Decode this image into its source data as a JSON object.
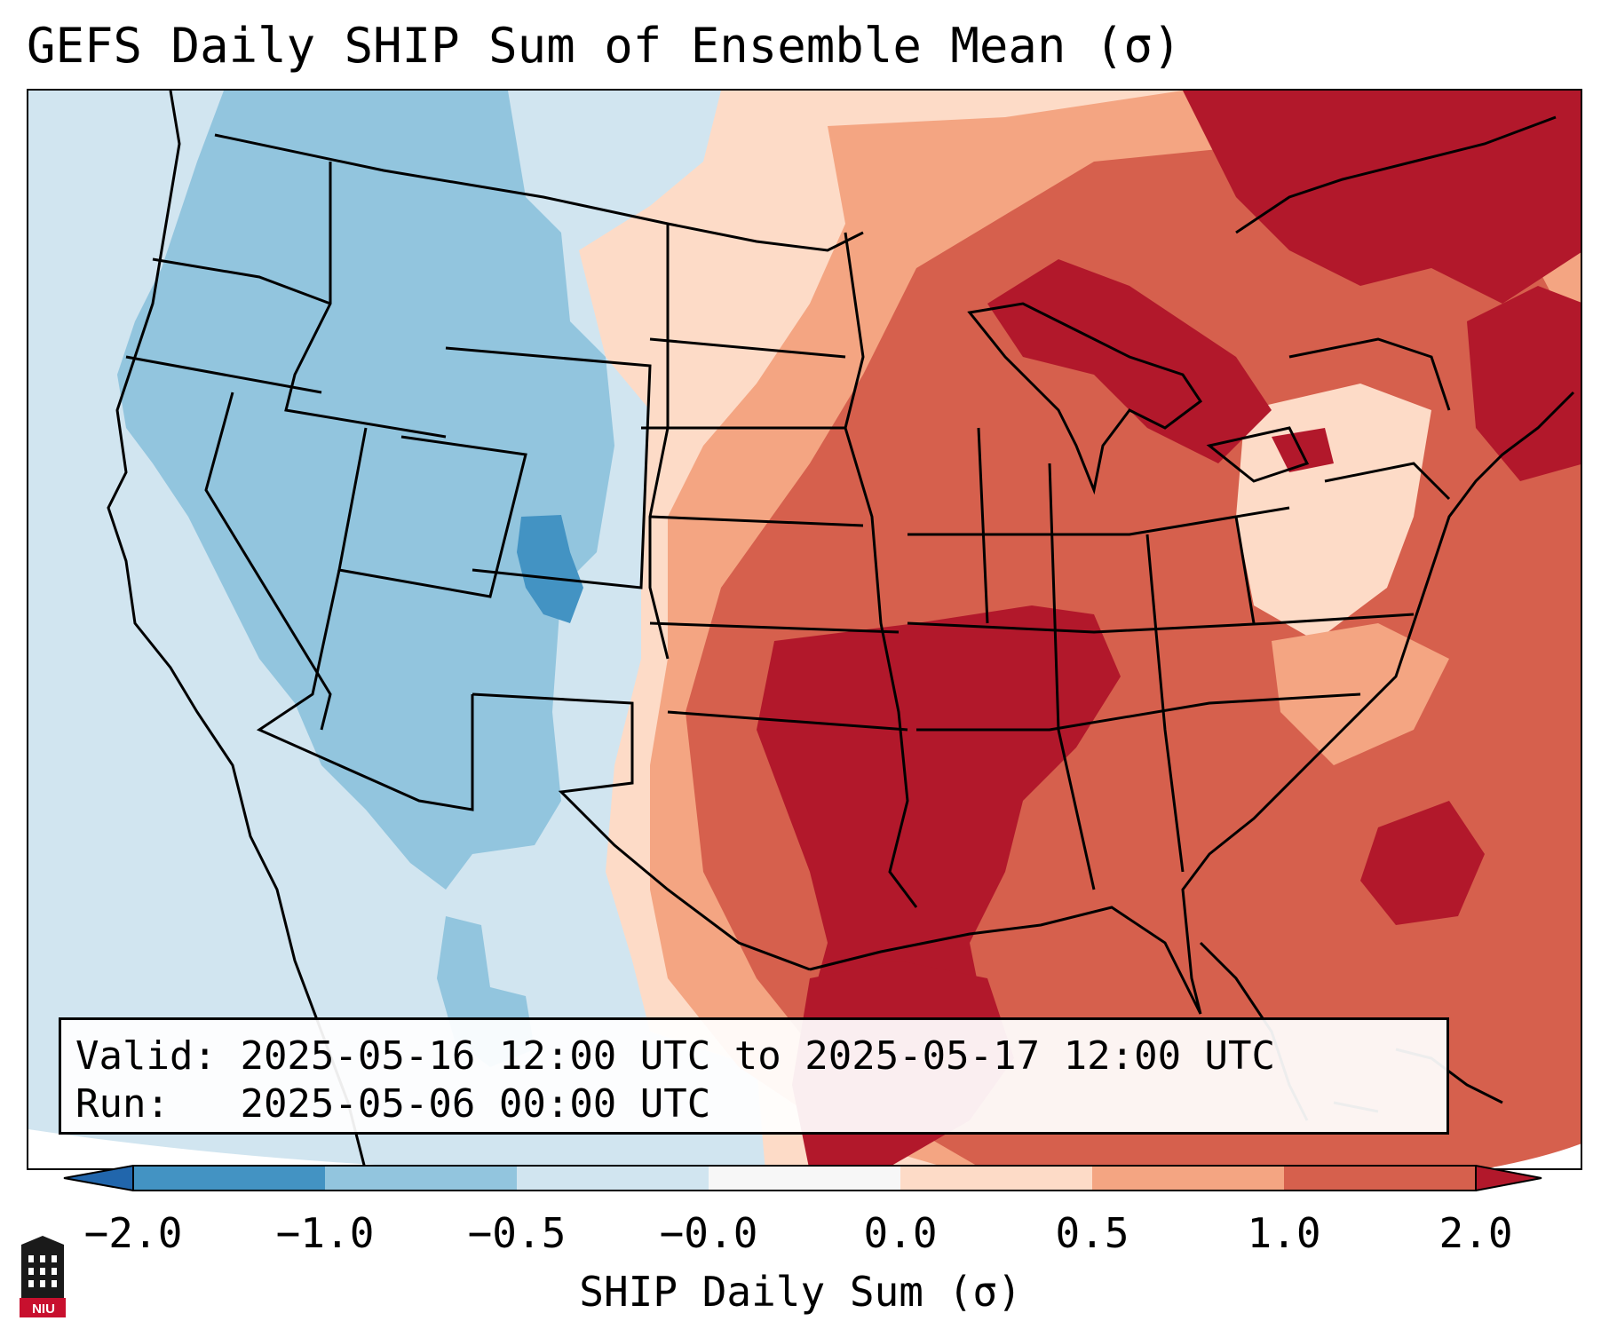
{
  "title": "GEFS Daily SHIP Sum of Ensemble Mean (σ)",
  "info": {
    "valid_label": "Valid:",
    "valid_value": "2025-05-16 12:00 UTC to 2025-05-17 12:00 UTC",
    "run_label": "Run:",
    "run_value": "2025-05-06 00:00 UTC"
  },
  "colorbar": {
    "label": "SHIP Daily Sum (σ)",
    "ticks": [
      "−2.0",
      "−1.0",
      "−0.5",
      "−0.0",
      "0.0",
      "0.5",
      "1.0",
      "2.0"
    ],
    "colors": [
      "#4393c3",
      "#92c5de",
      "#d1e5f0",
      "#f7f7f7",
      "#fddbc7",
      "#f4a582",
      "#d6604d",
      "#b2182b"
    ],
    "extend": "both"
  },
  "logo": {
    "text": "NIU",
    "icon": "niu-tower-logo"
  },
  "legend_bins": [
    {
      "range": "< −2.0",
      "color": "#2166ac"
    },
    {
      "range": "−2.0 to −1.0",
      "color": "#4393c3"
    },
    {
      "range": "−1.0 to −0.5",
      "color": "#92c5de"
    },
    {
      "range": "−0.5 to 0.0",
      "color": "#d1e5f0"
    },
    {
      "range": "0.0 to 0.5",
      "color": "#fddbc7"
    },
    {
      "range": "0.5 to 1.0",
      "color": "#f4a582"
    },
    {
      "range": "1.0 to 2.0",
      "color": "#d6604d"
    },
    {
      "range": "> 2.0",
      "color": "#b2182b"
    }
  ]
}
